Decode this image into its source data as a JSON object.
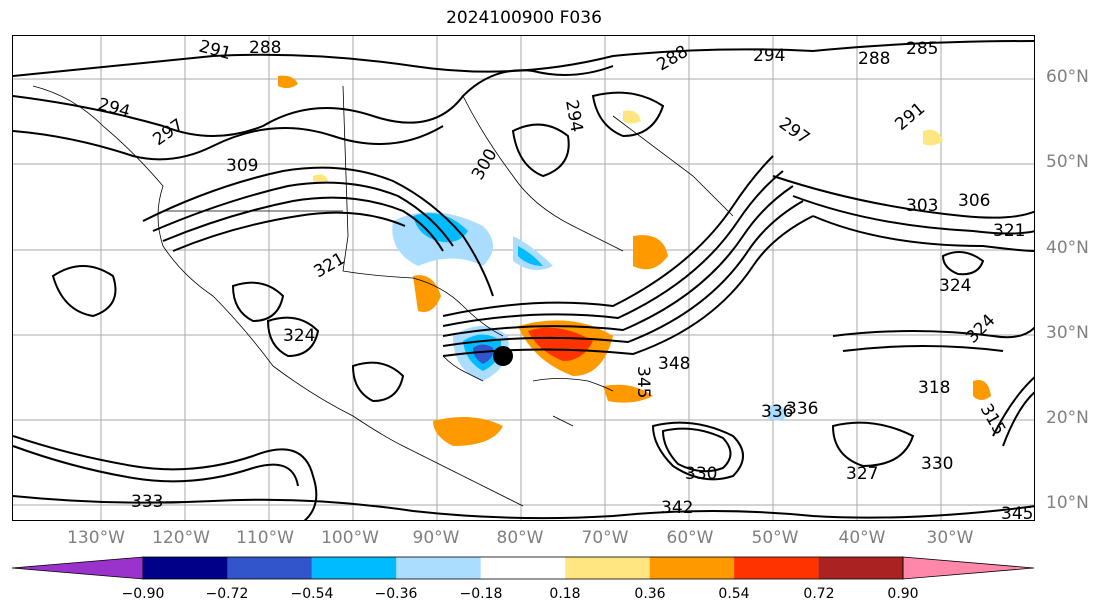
{
  "title": "2024100900 F036",
  "latitude_labels": [
    "60°N",
    "50°N",
    "40°N",
    "30°N",
    "20°N",
    "10°N"
  ],
  "longitude_labels": [
    "130°W",
    "120°W",
    "110°W",
    "100°W",
    "90°W",
    "80°W",
    "70°W",
    "60°W",
    "50°W",
    "40°W",
    "30°W"
  ],
  "contour_labels": [
    "291",
    "288",
    "294",
    "297",
    "309",
    "300",
    "294",
    "288",
    "294",
    "285",
    "288",
    "297",
    "291",
    "303",
    "306",
    "324",
    "321",
    "324",
    "348",
    "345",
    "336",
    "336",
    "330",
    "327",
    "330",
    "333",
    "342",
    "345",
    "318",
    "321",
    "324",
    "315"
  ],
  "colorbar": {
    "tick_labels": [
      "−0.90",
      "−0.72",
      "−0.54",
      "−0.36",
      "−0.18",
      "0.18",
      "0.36",
      "0.54",
      "0.72",
      "0.90"
    ],
    "colors": [
      "#9933cc",
      "#000088",
      "#3355cc",
      "#00bbff",
      "#aaddff",
      "#ffffff",
      "#ffe680",
      "#ff9900",
      "#ff3300",
      "#aa2222",
      "#ff88aa"
    ]
  }
}
